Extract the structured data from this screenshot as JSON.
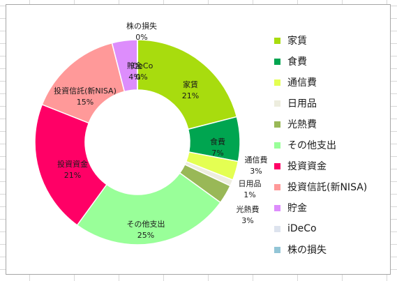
{
  "chart_data": {
    "type": "pie",
    "donut": true,
    "legend_position": "right",
    "slices": [
      {
        "name": "家賃",
        "value": 21,
        "label": "21%",
        "color": "#a8dc0e"
      },
      {
        "name": "食費",
        "value": 7,
        "label": "7%",
        "color": "#00a550"
      },
      {
        "name": "通信費",
        "value": 3,
        "label": "3%",
        "color": "#e4ff52"
      },
      {
        "name": "日用品",
        "value": 1,
        "label": "1%",
        "color": "#ededde"
      },
      {
        "name": "光熱費",
        "value": 3,
        "label": "3%",
        "color": "#99b857"
      },
      {
        "name": "その他支出",
        "value": 25,
        "label": "25%",
        "color": "#99ff99"
      },
      {
        "name": "投資資金",
        "value": 21,
        "label": "21%",
        "color": "#ff0066"
      },
      {
        "name": "投資信託(新NISA)",
        "value": 15,
        "label": "15%",
        "color": "#ff9999"
      },
      {
        "name": "貯金",
        "value": 4,
        "label": "4%",
        "color": "#dd8dfc"
      },
      {
        "name": "iDeCo",
        "value": 0,
        "label": "0%",
        "color": "#dde3ee"
      },
      {
        "name": "株の損失",
        "value": 0,
        "label": "0%",
        "color": "#92c5d6"
      }
    ]
  }
}
